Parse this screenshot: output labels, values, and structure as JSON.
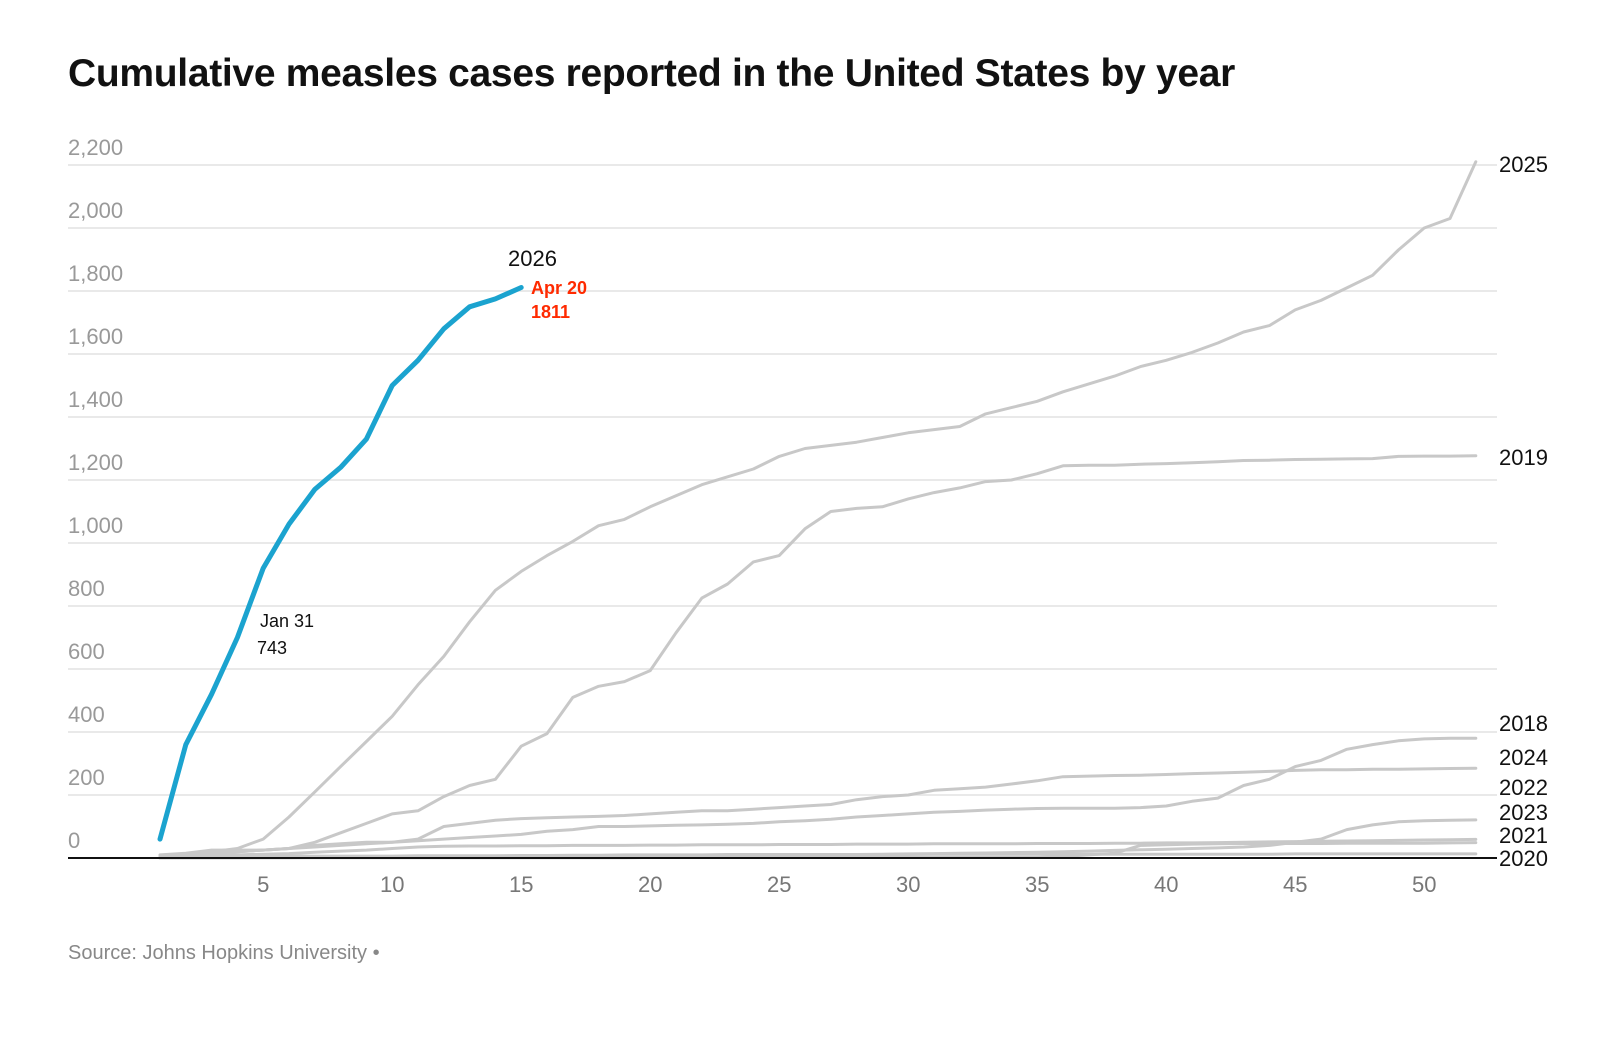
{
  "chart_data": {
    "type": "line",
    "title": "Cumulative measles cases reported in the United States by year",
    "source": "Source: Johns Hopkins University •",
    "xlabel": "",
    "ylabel": "",
    "xlim": [
      1,
      52
    ],
    "ylim": [
      0,
      2200
    ],
    "yticks": [
      0,
      200,
      400,
      600,
      800,
      1000,
      1200,
      1400,
      1600,
      1800,
      2000,
      2200
    ],
    "ytick_labels": [
      "0",
      "200",
      "400",
      "600",
      "800",
      "1,000",
      "1,200",
      "1,400",
      "1,600",
      "1,800",
      "2,000",
      "2,200"
    ],
    "xticks": [
      5,
      10,
      15,
      20,
      25,
      30,
      35,
      40,
      45,
      50
    ],
    "grid": true,
    "highlight_color": "#1ba3cf",
    "other_color": "#c8c8c8",
    "annotation_color": "#ff2a00",
    "series": [
      {
        "name": "2025",
        "values": [
          5,
          10,
          20,
          30,
          60,
          130,
          210,
          290,
          370,
          450,
          550,
          640,
          750,
          850,
          910,
          960,
          1005,
          1055,
          1075,
          1115,
          1150,
          1185,
          1210,
          1235,
          1275,
          1300,
          1310,
          1320,
          1335,
          1350,
          1360,
          1370,
          1410,
          1430,
          1450,
          1480,
          1505,
          1530,
          1560,
          1580,
          1605,
          1635,
          1670,
          1690,
          1740,
          1770,
          1810,
          1850,
          1930,
          2000,
          2030,
          2210
        ]
      },
      {
        "name": "2019",
        "values": [
          5,
          10,
          15,
          20,
          25,
          30,
          50,
          80,
          110,
          140,
          150,
          195,
          230,
          250,
          355,
          395,
          510,
          545,
          560,
          595,
          715,
          825,
          870,
          940,
          960,
          1045,
          1100,
          1110,
          1115,
          1140,
          1160,
          1175,
          1195,
          1200,
          1220,
          1245,
          1247,
          1247,
          1250,
          1252,
          1255,
          1258,
          1262,
          1263,
          1265,
          1266,
          1267,
          1268,
          1275,
          1276,
          1276,
          1277
        ]
      },
      {
        "name": "2018",
        "values": [
          5,
          10,
          15,
          20,
          25,
          30,
          35,
          40,
          45,
          50,
          55,
          60,
          65,
          70,
          75,
          85,
          90,
          100,
          100,
          102,
          104,
          105,
          107,
          110,
          115,
          118,
          123,
          130,
          135,
          140,
          145,
          148,
          152,
          155,
          157,
          158,
          158,
          158,
          160,
          165,
          180,
          190,
          230,
          250,
          290,
          310,
          345,
          360,
          372,
          378,
          380,
          380
        ]
      },
      {
        "name": "2024",
        "values": [
          10,
          15,
          25,
          25,
          25,
          30,
          40,
          45,
          50,
          50,
          60,
          100,
          110,
          120,
          125,
          128,
          130,
          132,
          135,
          140,
          145,
          150,
          150,
          155,
          160,
          165,
          170,
          185,
          195,
          200,
          215,
          220,
          225,
          235,
          245,
          258,
          260,
          262,
          263,
          265,
          268,
          270,
          272,
          275,
          278,
          280,
          280,
          282,
          282,
          283,
          284,
          285
        ]
      },
      {
        "name": "2022",
        "values": [
          0,
          0,
          0,
          0,
          1,
          1,
          2,
          2,
          3,
          3,
          3,
          4,
          4,
          4,
          5,
          5,
          5,
          6,
          6,
          7,
          7,
          8,
          8,
          9,
          9,
          10,
          10,
          11,
          12,
          13,
          14,
          15,
          16,
          17,
          18,
          20,
          22,
          24,
          26,
          28,
          30,
          32,
          35,
          40,
          50,
          60,
          90,
          105,
          115,
          118,
          120,
          121
        ]
      },
      {
        "name": "2023",
        "values": [
          2,
          5,
          8,
          10,
          12,
          14,
          18,
          22,
          25,
          30,
          35,
          37,
          38,
          38,
          39,
          39,
          40,
          40,
          40,
          41,
          41,
          42,
          42,
          42,
          43,
          43,
          43,
          44,
          44,
          44,
          45,
          45,
          45,
          45,
          46,
          46,
          46,
          47,
          47,
          48,
          48,
          49,
          50,
          51,
          52,
          53,
          54,
          55,
          56,
          57,
          58,
          59
        ]
      },
      {
        "name": "2021",
        "values": [
          0,
          1,
          1,
          1,
          1,
          1,
          1,
          1,
          1,
          1,
          1,
          1,
          1,
          1,
          1,
          1,
          1,
          1,
          1,
          2,
          2,
          2,
          2,
          2,
          2,
          2,
          2,
          2,
          2,
          2,
          2,
          2,
          2,
          2,
          2,
          5,
          10,
          15,
          40,
          42,
          44,
          45,
          46,
          46,
          46,
          46,
          47,
          47,
          47,
          47,
          48,
          49
        ]
      },
      {
        "name": "2020",
        "values": [
          2,
          3,
          4,
          5,
          6,
          6,
          6,
          6,
          6,
          6,
          7,
          7,
          7,
          7,
          8,
          8,
          9,
          9,
          10,
          10,
          10,
          10,
          11,
          11,
          11,
          11,
          11,
          11,
          11,
          11,
          12,
          12,
          12,
          12,
          12,
          12,
          12,
          12,
          12,
          12,
          12,
          12,
          12,
          12,
          13,
          13,
          13,
          13,
          13,
          13,
          13,
          13
        ]
      },
      {
        "name": "2026",
        "values": [
          60,
          360,
          520,
          700,
          920,
          1060,
          1170,
          1240,
          1330,
          1500,
          1580,
          1680,
          1750,
          1775,
          1811
        ]
      }
    ],
    "annotations": [
      {
        "series": "2026",
        "date": "Apr 20",
        "value": "1811"
      },
      {
        "series": "2026",
        "date": "Jan 31",
        "value": "743"
      }
    ]
  }
}
